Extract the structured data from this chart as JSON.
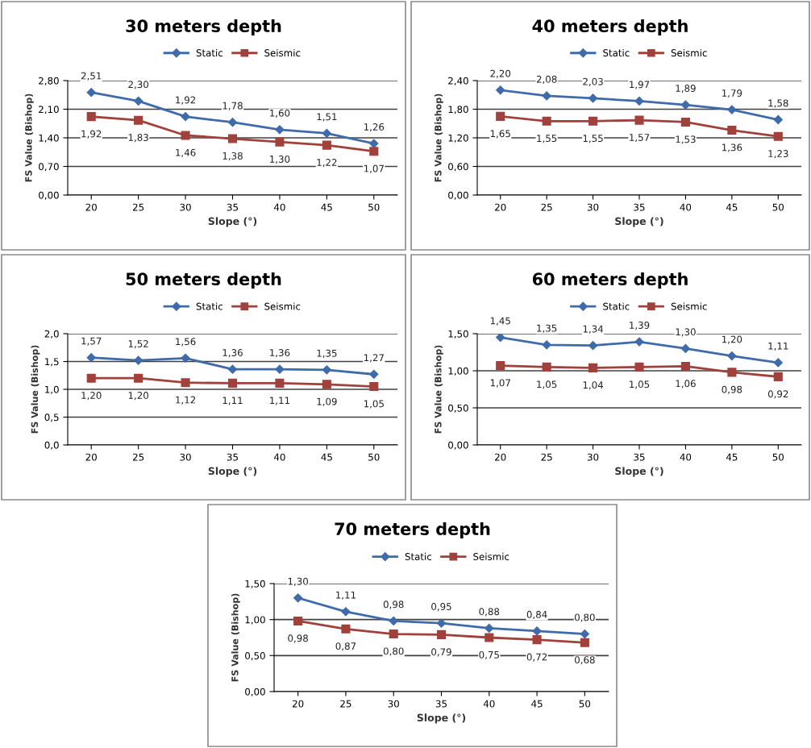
{
  "chart_data": [
    {
      "type": "line",
      "title": "30 meters depth",
      "xlabel": "Slope (°)",
      "ylabel": "FS Value (Bishop)",
      "categories": [
        "20",
        "25",
        "30",
        "35",
        "40",
        "45",
        "50"
      ],
      "ylim": [
        0,
        2.8
      ],
      "yticks": [
        {
          "value": 0,
          "label": "0,00"
        },
        {
          "value": 0.7,
          "label": "0,70"
        },
        {
          "value": 1.4,
          "label": "1,40"
        },
        {
          "value": 2.1,
          "label": "2,10"
        },
        {
          "value": 2.8,
          "label": "2,80"
        }
      ],
      "grid": "y",
      "legend": "top",
      "series": [
        {
          "name": "Static",
          "color": "#3f6bab",
          "marker": "diamond",
          "values": [
            2.51,
            2.3,
            1.92,
            1.78,
            1.6,
            1.51,
            1.26
          ],
          "value_labels": [
            "2,51",
            "2,30",
            "1,92",
            "1,78",
            "1,60",
            "1,51",
            "1,26"
          ]
        },
        {
          "name": "Seismic",
          "color": "#a0413c",
          "marker": "square",
          "values": [
            1.92,
            1.83,
            1.46,
            1.38,
            1.3,
            1.22,
            1.07
          ],
          "value_labels": [
            "1,92",
            "1,83",
            "1,46",
            "1,38",
            "1,30",
            "1,22",
            "1,07"
          ]
        }
      ]
    },
    {
      "type": "line",
      "title": "40 meters depth",
      "xlabel": "Slope (°)",
      "ylabel": "FS Value (Bishop)",
      "categories": [
        "20",
        "25",
        "30",
        "35",
        "40",
        "45",
        "50"
      ],
      "ylim": [
        0,
        2.4
      ],
      "yticks": [
        {
          "value": 0,
          "label": "0,00"
        },
        {
          "value": 0.6,
          "label": "0,60"
        },
        {
          "value": 1.2,
          "label": "1,20"
        },
        {
          "value": 1.8,
          "label": "1,80"
        },
        {
          "value": 2.4,
          "label": "2,40"
        }
      ],
      "grid": "y",
      "legend": "top",
      "series": [
        {
          "name": "Static",
          "color": "#3f6bab",
          "marker": "diamond",
          "values": [
            2.2,
            2.08,
            2.03,
            1.97,
            1.89,
            1.79,
            1.58
          ],
          "value_labels": [
            "2,20",
            "2,08",
            "2,03",
            "1,97",
            "1,89",
            "1,79",
            "1,58"
          ]
        },
        {
          "name": "Seismic",
          "color": "#a0413c",
          "marker": "square",
          "values": [
            1.65,
            1.55,
            1.55,
            1.57,
            1.53,
            1.36,
            1.23
          ],
          "value_labels": [
            "1,65",
            "1,55",
            "1,55",
            "1,57",
            "1,53",
            "1,36",
            "1,23"
          ]
        }
      ]
    },
    {
      "type": "line",
      "title": "50 meters depth",
      "xlabel": "Slope (°)",
      "ylabel": "FS Value (Bishop)",
      "categories": [
        "20",
        "25",
        "30",
        "35",
        "40",
        "45",
        "50"
      ],
      "ylim": [
        0,
        2.0
      ],
      "yticks": [
        {
          "value": 0,
          "label": "0,0"
        },
        {
          "value": 0.5,
          "label": "0,5"
        },
        {
          "value": 1.0,
          "label": "1,0"
        },
        {
          "value": 1.5,
          "label": "1,5"
        },
        {
          "value": 2.0,
          "label": "2,0"
        }
      ],
      "grid": "y",
      "legend": "top",
      "series": [
        {
          "name": "Static",
          "color": "#3f6bab",
          "marker": "diamond",
          "values": [
            1.57,
            1.52,
            1.56,
            1.36,
            1.36,
            1.35,
            1.27
          ],
          "value_labels": [
            "1,57",
            "1,52",
            "1,56",
            "1,36",
            "1,36",
            "1,35",
            "1,27"
          ]
        },
        {
          "name": "Seismic",
          "color": "#a0413c",
          "marker": "square",
          "values": [
            1.2,
            1.2,
            1.12,
            1.11,
            1.11,
            1.09,
            1.05
          ],
          "value_labels": [
            "1,20",
            "1,20",
            "1,12",
            "1,11",
            "1,11",
            "1,09",
            "1,05"
          ]
        }
      ]
    },
    {
      "type": "line",
      "title": "60 meters depth",
      "xlabel": "Slope (°)",
      "ylabel": "FS Value (Bishop)",
      "categories": [
        "20",
        "25",
        "30",
        "35",
        "40",
        "45",
        "50"
      ],
      "ylim": [
        0,
        1.5
      ],
      "yticks": [
        {
          "value": 0,
          "label": "0,00"
        },
        {
          "value": 0.5,
          "label": "0,50"
        },
        {
          "value": 1.0,
          "label": "1,00"
        },
        {
          "value": 1.5,
          "label": "1,50"
        }
      ],
      "grid": "y",
      "legend": "top",
      "series": [
        {
          "name": "Static",
          "color": "#3f6bab",
          "marker": "diamond",
          "values": [
            1.45,
            1.35,
            1.34,
            1.39,
            1.3,
            1.2,
            1.11
          ],
          "value_labels": [
            "1,45",
            "1,35",
            "1,34",
            "1,39",
            "1,30",
            "1,20",
            "1,11"
          ]
        },
        {
          "name": "Seismic",
          "color": "#a0413c",
          "marker": "square",
          "values": [
            1.07,
            1.05,
            1.04,
            1.05,
            1.06,
            0.98,
            0.92
          ],
          "value_labels": [
            "1,07",
            "1,05",
            "1,04",
            "1,05",
            "1,06",
            "0,98",
            "0,92"
          ]
        }
      ]
    },
    {
      "type": "line",
      "title": "70 meters depth",
      "xlabel": "Slope (°)",
      "ylabel": "FS Value (Bishop)",
      "categories": [
        "20",
        "25",
        "30",
        "35",
        "40",
        "45",
        "50"
      ],
      "ylim": [
        0,
        1.5
      ],
      "yticks": [
        {
          "value": 0,
          "label": "0,00"
        },
        {
          "value": 0.5,
          "label": "0,50"
        },
        {
          "value": 1.0,
          "label": "1,00"
        },
        {
          "value": 1.5,
          "label": "1,50"
        }
      ],
      "grid": "y",
      "legend": "top",
      "series": [
        {
          "name": "Static",
          "color": "#3f6bab",
          "marker": "diamond",
          "values": [
            1.3,
            1.11,
            0.98,
            0.95,
            0.88,
            0.84,
            0.8
          ],
          "value_labels": [
            "1,30",
            "1,11",
            "0,98",
            "0,95",
            "0,88",
            "0,84",
            "0,80"
          ]
        },
        {
          "name": "Seismic",
          "color": "#a0413c",
          "marker": "square",
          "values": [
            0.98,
            0.87,
            0.8,
            0.79,
            0.75,
            0.72,
            0.68
          ],
          "value_labels": [
            "0,98",
            "0,87",
            "0,80",
            "0,79",
            "0,75",
            "0,72",
            "0,68"
          ]
        }
      ]
    }
  ]
}
